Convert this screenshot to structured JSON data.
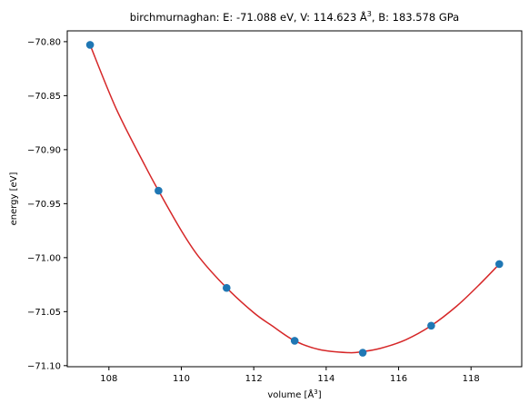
{
  "chart_data": {
    "type": "scatter",
    "title_prefix": "birchmurnaghan: E: -71.088 eV, V: 114.623 Å",
    "title_exponent": "3",
    "title_suffix": ", B: 183.578 GPa",
    "xlabel_prefix": "volume [Å",
    "xlabel_exponent": "3",
    "xlabel_suffix": "]",
    "ylabel": "energy [eV]",
    "xlim": [
      106.85,
      119.4
    ],
    "ylim": [
      -71.101,
      -70.79
    ],
    "x_ticks": [
      108,
      110,
      112,
      114,
      116,
      118
    ],
    "x_tick_labels": [
      "108",
      "110",
      "112",
      "114",
      "116",
      "118"
    ],
    "y_ticks": [
      -70.8,
      -70.85,
      -70.9,
      -70.95,
      -71.0,
      -71.05,
      -71.1
    ],
    "y_tick_labels": [
      "−70.80",
      "−70.85",
      "−70.90",
      "−70.95",
      "−71.00",
      "−71.05",
      "−71.10"
    ],
    "grid": false,
    "series": [
      {
        "kind": "points",
        "color": "#1f77b4",
        "x": [
          107.48,
          109.37,
          111.25,
          113.13,
          115.01,
          116.9,
          118.78
        ],
        "y": [
          -70.803,
          -70.938,
          -71.028,
          -71.077,
          -71.088,
          -71.063,
          -71.006
        ]
      },
      {
        "kind": "fit-curve",
        "color": "#d62728",
        "x": [
          107.48,
          108.2,
          109.0,
          109.37,
          110.0,
          110.5,
          111.25,
          112.0,
          112.5,
          113.13,
          113.8,
          114.623,
          115.01,
          115.5,
          116.2,
          116.9,
          117.6,
          118.2,
          118.78
        ],
        "y": [
          -70.803,
          -70.862,
          -70.915,
          -70.938,
          -70.975,
          -71.0,
          -71.028,
          -71.051,
          -71.063,
          -71.077,
          -71.085,
          -71.088,
          -71.087,
          -71.084,
          -71.076,
          -71.063,
          -71.045,
          -71.026,
          -71.006
        ]
      }
    ]
  }
}
